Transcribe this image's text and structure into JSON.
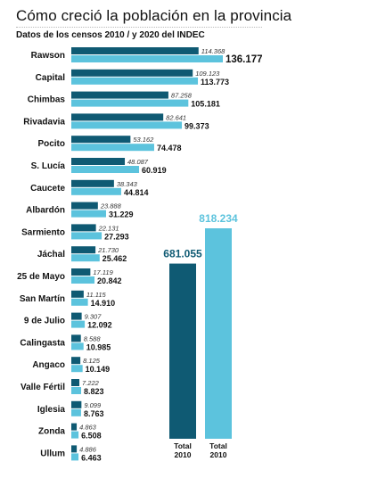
{
  "header": {
    "title": "Cómo creció la población en la provincia",
    "subtitle": "Datos de los censos 2010 / y 2020 del INDEC"
  },
  "colors": {
    "bar_2010": "#0f5a73",
    "bar_2020": "#5cc3dd",
    "total_2020_label": "#5cc3dd",
    "total_2010_label": "#0f5a73"
  },
  "chart_data": {
    "type": "bar",
    "orientation": "horizontal",
    "categories": [
      "Rawson",
      "Capital",
      "Chimbas",
      "Rivadavia",
      "Pocito",
      "S. Lucía",
      "Caucete",
      "Albardón",
      "Sarmiento",
      "Jáchal",
      "25 de Mayo",
      "San Martín",
      "9 de Julio",
      "Calingasta",
      "Angaco",
      "Valle Fértil",
      "Iglesia",
      "Zonda",
      "Ullum"
    ],
    "series": [
      {
        "values": [
          114368,
          109123,
          87258,
          82641,
          53162,
          48087,
          38343,
          23888,
          22131,
          21730,
          17119,
          11115,
          9307,
          8588,
          8125,
          7222,
          9099,
          4863,
          4886
        ],
        "labels": [
          "114.368",
          "109.123",
          "87.258",
          "82.641",
          "53.162",
          "48.087",
          "38.343",
          "23.888",
          "22.131",
          "21.730",
          "17.119",
          "11.115",
          "9.307",
          "8.588",
          "8.125",
          "7.222",
          "9.099",
          "4.863",
          "4.886"
        ]
      },
      {
        "values": [
          136177,
          113773,
          105181,
          99373,
          74478,
          60919,
          44814,
          31229,
          27293,
          25462,
          20842,
          14910,
          12092,
          10985,
          10149,
          8823,
          8763,
          6508,
          6463
        ],
        "labels": [
          "136.177",
          "113.773",
          "105.181",
          "99.373",
          "74.478",
          "60.919",
          "44.814",
          "31.229",
          "27.293",
          "25.462",
          "20.842",
          "14.910",
          "12.092",
          "10.985",
          "10.149",
          "8.823",
          "8.763",
          "6.508",
          "6.463"
        ]
      }
    ],
    "totals": [
      {
        "category": [
          "Total",
          "2010"
        ],
        "value": 681055,
        "label": "681.055"
      },
      {
        "category": [
          "Total",
          "2010"
        ],
        "value": 818234,
        "label": "818.234"
      }
    ]
  }
}
